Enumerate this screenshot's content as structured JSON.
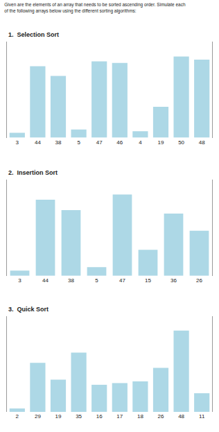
{
  "title": "Given are the elements of an array that needs to be sorted ascending order. Simulate each\nof the following arrays below using the different sorting algorithms:",
  "chart_data": [
    {
      "type": "bar",
      "title": "1.  Selection Sort",
      "categories": [
        "3",
        "44",
        "38",
        "5",
        "47",
        "46",
        "4",
        "19",
        "50",
        "48"
      ],
      "values": [
        3,
        44,
        38,
        5,
        47,
        46,
        4,
        19,
        50,
        48
      ],
      "color": "#add8e6",
      "ylim": [
        0,
        59
      ],
      "grid": false,
      "tick_labels": "x"
    },
    {
      "type": "bar",
      "title": "2.  Insertion Sort",
      "categories": [
        "3",
        "44",
        "38",
        "5",
        "47",
        "15",
        "36",
        "26"
      ],
      "values": [
        3,
        44,
        38,
        5,
        47,
        15,
        36,
        26
      ],
      "color": "#add8e6",
      "ylim": [
        0,
        55.46
      ],
      "grid": false,
      "tick_labels": "x"
    },
    {
      "type": "bar",
      "title": "3.  Quick Sort",
      "categories": [
        "2",
        "29",
        "19",
        "35",
        "16",
        "17",
        "18",
        "26",
        "48",
        "11"
      ],
      "values": [
        2,
        29,
        19,
        35,
        16,
        17,
        18,
        26,
        48,
        11
      ],
      "color": "#add8e6",
      "ylim": [
        0,
        56.64
      ],
      "grid": false,
      "tick_labels": "x"
    }
  ]
}
